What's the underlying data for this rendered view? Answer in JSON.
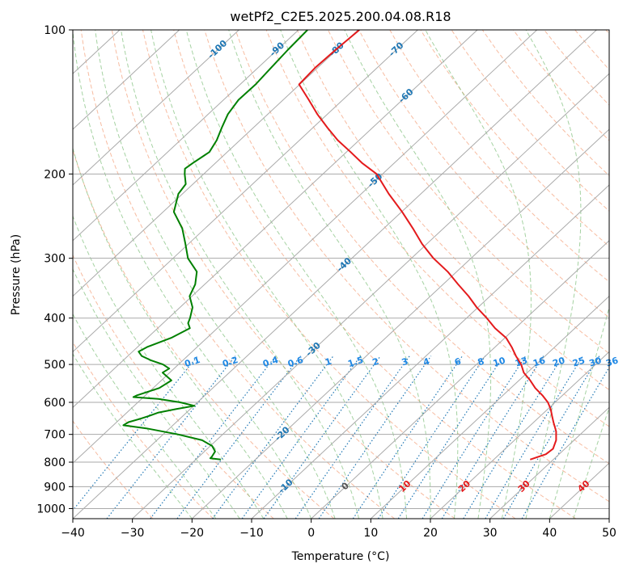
{
  "chart_data": {
    "type": "line",
    "title": "wetPf2_C2E5.2025.200.04.08.R18",
    "xlabel": "Temperature (°C)",
    "ylabel": "Pressure (hPa)",
    "xlim": [
      -40,
      50
    ],
    "ylim": [
      1050,
      100
    ],
    "y_scale": "log",
    "skew": true,
    "grid": true,
    "x_ticks": [
      -40,
      -30,
      -20,
      -10,
      0,
      10,
      20,
      30,
      40,
      50
    ],
    "y_ticks": [
      100,
      200,
      300,
      400,
      500,
      600,
      700,
      800,
      900,
      1000
    ],
    "colors": {
      "temperature": "#e41a1c",
      "dewpoint": "#008000",
      "dry_adiabat": "#f4a582",
      "moist_adiabat": "#7fbf7b",
      "mixing_ratio": "#1f77b4",
      "grid": "#aaaaaa"
    },
    "isotherm_labels": [
      "-100",
      "-90",
      "-80",
      "-70",
      "-60",
      "-50",
      "-40",
      "-30",
      "-20",
      "-10",
      "0",
      "10",
      "20",
      "30",
      "40"
    ],
    "mixing_ratio_labels": [
      "0.1",
      "0.2",
      "0.4",
      "0.6",
      "1",
      "1.5",
      "2",
      "3",
      "4",
      "6",
      "8",
      "10",
      "13",
      "16",
      "20",
      "25",
      "30",
      "36"
    ],
    "series": [
      {
        "key": "temperature",
        "pressure": [
          790,
          770,
          750,
          720,
          690,
          660,
          640,
          620,
          600,
          580,
          560,
          540,
          520,
          500,
          480,
          460,
          440,
          420,
          400,
          380,
          360,
          340,
          320,
          300,
          280,
          260,
          240,
          220,
          200,
          190,
          180,
          170,
          160,
          150,
          140,
          130,
          120,
          110,
          100
        ],
        "temperature": [
          26.1,
          27.8,
          28.0,
          27.0,
          25.4,
          23.3,
          21.9,
          20.5,
          18.8,
          16.6,
          14.1,
          11.9,
          9.4,
          7.5,
          5.1,
          2.8,
          0.2,
          -3.4,
          -6.6,
          -10.2,
          -13.6,
          -17.5,
          -21.5,
          -26.3,
          -30.8,
          -35.1,
          -39.9,
          -45.4,
          -51.0,
          -55.3,
          -59.3,
          -63.6,
          -67.6,
          -71.7,
          -75.7,
          -80.1,
          -80.4,
          -80.2,
          -79.8
        ]
      },
      {
        "key": "dewpoint",
        "pressure": [
          790,
          785,
          780,
          760,
          740,
          720,
          700,
          680,
          670,
          660,
          650,
          640,
          630,
          620,
          610,
          600,
          590,
          585,
          580,
          560,
          540,
          520,
          510,
          500,
          490,
          480,
          470,
          460,
          440,
          420,
          410,
          400,
          380,
          360,
          340,
          320,
          300,
          280,
          260,
          240,
          220,
          210,
          200,
          195,
          190,
          180,
          170,
          160,
          150,
          140,
          130,
          120,
          110,
          100
        ],
        "dewpoint": [
          -25.8,
          -27.8,
          -27.8,
          -28.2,
          -29.7,
          -32.4,
          -37.5,
          -43.9,
          -48.3,
          -48.0,
          -46.7,
          -45.6,
          -44.7,
          -42.4,
          -39.9,
          -42.9,
          -47.2,
          -51.7,
          -51.4,
          -49.0,
          -48.3,
          -51.2,
          -50.8,
          -52.6,
          -55.4,
          -57.7,
          -59.0,
          -58.4,
          -56.0,
          -54.6,
          -55.8,
          -56.4,
          -57.9,
          -60.4,
          -61.6,
          -63.6,
          -67.5,
          -70.5,
          -73.8,
          -78.2,
          -80.7,
          -81.2,
          -83.2,
          -84.1,
          -83.8,
          -83.0,
          -83.9,
          -85.3,
          -86.7,
          -87.5,
          -87.4,
          -87.8,
          -88.2,
          -88.5
        ]
      }
    ]
  }
}
